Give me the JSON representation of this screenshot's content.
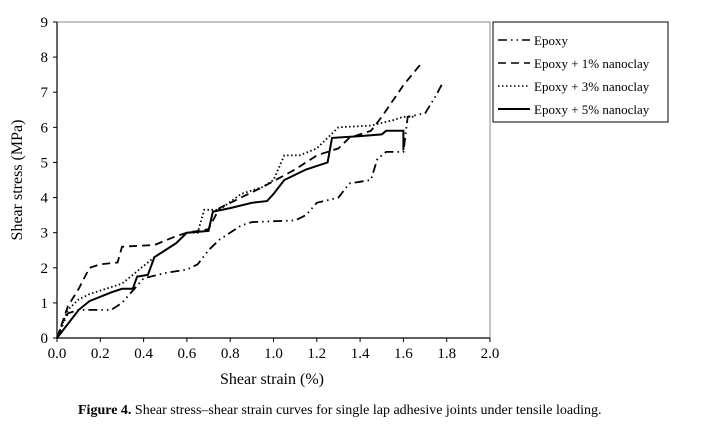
{
  "chart_data": {
    "type": "line",
    "xlabel": "Shear strain (%)",
    "ylabel": "Shear stress (MPa)",
    "xlim": [
      0,
      2.0
    ],
    "ylim": [
      0,
      9
    ],
    "xticks": [
      "0.0",
      "0.2",
      "0.4",
      "0.6",
      "0.8",
      "1.0",
      "1.2",
      "1.4",
      "1.6",
      "1.8",
      "2.0"
    ],
    "yticks": [
      "0",
      "1",
      "2",
      "3",
      "4",
      "5",
      "6",
      "7",
      "8",
      "9"
    ],
    "grid": false,
    "legend_position": "top-right",
    "series": [
      {
        "name": "Epoxy",
        "style": "dashdotdot",
        "points": [
          [
            0,
            0
          ],
          [
            0.05,
            0.7
          ],
          [
            0.1,
            0.8
          ],
          [
            0.25,
            0.8
          ],
          [
            0.3,
            1.0
          ],
          [
            0.4,
            1.7
          ],
          [
            0.5,
            1.85
          ],
          [
            0.6,
            1.95
          ],
          [
            0.65,
            2.1
          ],
          [
            0.7,
            2.5
          ],
          [
            0.75,
            2.8
          ],
          [
            0.85,
            3.2
          ],
          [
            0.9,
            3.3
          ],
          [
            1.1,
            3.35
          ],
          [
            1.15,
            3.5
          ],
          [
            1.2,
            3.85
          ],
          [
            1.3,
            4.0
          ],
          [
            1.35,
            4.4
          ],
          [
            1.45,
            4.5
          ],
          [
            1.48,
            5.1
          ],
          [
            1.52,
            5.3
          ],
          [
            1.6,
            5.3
          ],
          [
            1.62,
            6.3
          ],
          [
            1.7,
            6.4
          ],
          [
            1.75,
            6.9
          ],
          [
            1.78,
            7.25
          ]
        ]
      },
      {
        "name": "Epoxy + 1% nanoclay",
        "style": "dashed",
        "points": [
          [
            0,
            0
          ],
          [
            0.05,
            0.9
          ],
          [
            0.1,
            1.4
          ],
          [
            0.15,
            2.0
          ],
          [
            0.2,
            2.1
          ],
          [
            0.28,
            2.15
          ],
          [
            0.3,
            2.6
          ],
          [
            0.45,
            2.65
          ],
          [
            0.55,
            2.9
          ],
          [
            0.6,
            3.0
          ],
          [
            0.7,
            3.1
          ],
          [
            0.75,
            3.7
          ],
          [
            0.85,
            4.0
          ],
          [
            0.95,
            4.3
          ],
          [
            1.1,
            4.8
          ],
          [
            1.2,
            5.2
          ],
          [
            1.3,
            5.4
          ],
          [
            1.35,
            5.7
          ],
          [
            1.45,
            5.9
          ],
          [
            1.5,
            6.3
          ],
          [
            1.6,
            7.2
          ],
          [
            1.68,
            7.8
          ]
        ]
      },
      {
        "name": "Epoxy + 3% nanoclay",
        "style": "dotted",
        "points": [
          [
            0,
            0
          ],
          [
            0.05,
            0.8
          ],
          [
            0.1,
            1.1
          ],
          [
            0.15,
            1.25
          ],
          [
            0.3,
            1.55
          ],
          [
            0.35,
            1.8
          ],
          [
            0.45,
            2.3
          ],
          [
            0.55,
            2.7
          ],
          [
            0.6,
            3.0
          ],
          [
            0.65,
            3.0
          ],
          [
            0.68,
            3.65
          ],
          [
            0.75,
            3.65
          ],
          [
            0.85,
            4.1
          ],
          [
            0.95,
            4.3
          ],
          [
            1.0,
            4.5
          ],
          [
            1.05,
            5.2
          ],
          [
            1.12,
            5.2
          ],
          [
            1.2,
            5.4
          ],
          [
            1.3,
            6.0
          ],
          [
            1.45,
            6.05
          ],
          [
            1.55,
            6.2
          ],
          [
            1.6,
            6.3
          ],
          [
            1.65,
            6.3
          ]
        ]
      },
      {
        "name": "Epoxy + 5% nanoclay",
        "style": "solid",
        "points": [
          [
            0,
            0
          ],
          [
            0.1,
            0.8
          ],
          [
            0.15,
            1.05
          ],
          [
            0.25,
            1.3
          ],
          [
            0.3,
            1.4
          ],
          [
            0.35,
            1.4
          ],
          [
            0.37,
            1.75
          ],
          [
            0.42,
            1.8
          ],
          [
            0.45,
            2.3
          ],
          [
            0.55,
            2.7
          ],
          [
            0.6,
            3.0
          ],
          [
            0.7,
            3.05
          ],
          [
            0.72,
            3.6
          ],
          [
            0.8,
            3.7
          ],
          [
            0.9,
            3.85
          ],
          [
            0.97,
            3.9
          ],
          [
            1.0,
            4.1
          ],
          [
            1.05,
            4.5
          ],
          [
            1.15,
            4.8
          ],
          [
            1.25,
            5.0
          ],
          [
            1.27,
            5.7
          ],
          [
            1.4,
            5.75
          ],
          [
            1.5,
            5.8
          ],
          [
            1.52,
            5.9
          ],
          [
            1.6,
            5.9
          ],
          [
            1.6,
            5.35
          ]
        ]
      }
    ]
  },
  "caption": {
    "label": "Figure 4.",
    "text": " Shear stress–shear strain curves for single lap adhesive joints under tensile loading."
  }
}
